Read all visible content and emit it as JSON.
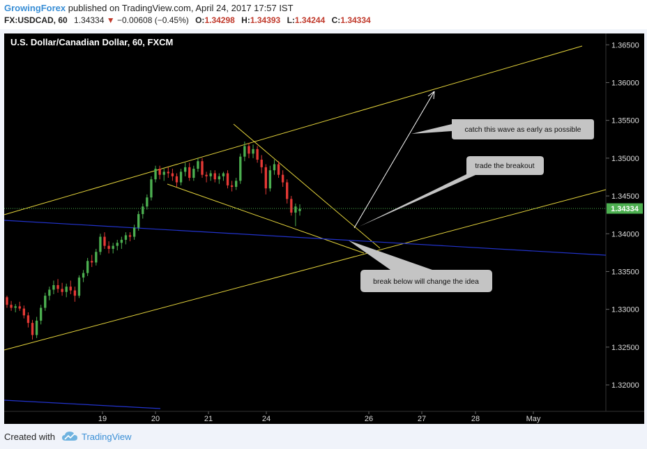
{
  "header": {
    "author": "GrowingForex",
    "published": " published on TradingView.com, April 24, 2017 17:57 IST",
    "symbol": "FX:USDCAD, 60",
    "last": "1.34334",
    "change": "−0.00608 (−0.45%)",
    "o_label": "O:",
    "o": "1.34298",
    "h_label": "H:",
    "h": "1.34393",
    "l_label": "L:",
    "l": "1.34244",
    "c_label": "C:",
    "c": "1.34334"
  },
  "footer": {
    "created": "Created with",
    "brand": "TradingView"
  },
  "colors": {
    "background": "#000000",
    "up": "#4caf50",
    "down": "#e53935",
    "trendline": "#e6d53c",
    "channel_blue": "#2233cc",
    "price_tag": "#4caf50"
  },
  "chart_data": {
    "type": "candlestick",
    "title": "U.S. Dollar/Canadian Dollar, 60, FXCM",
    "ylim": [
      1.3165,
      1.3665
    ],
    "y_ticks": [
      "1.36500",
      "1.36000",
      "1.35500",
      "1.35000",
      "1.34500",
      "1.34000",
      "1.33500",
      "1.33000",
      "1.32500",
      "1.32000"
    ],
    "x_ticks": [
      "19",
      "20",
      "21",
      "24",
      "26",
      "27",
      "28",
      "May"
    ],
    "last_price": "1.34334",
    "candles": [
      [
        1.3316,
        1.3318,
        1.3302,
        1.3306
      ],
      [
        1.3306,
        1.3311,
        1.3298,
        1.3302
      ],
      [
        1.3302,
        1.3307,
        1.3296,
        1.3304
      ],
      [
        1.3304,
        1.331,
        1.3298,
        1.3301
      ],
      [
        1.3301,
        1.3305,
        1.3288,
        1.3292
      ],
      [
        1.3292,
        1.3296,
        1.3276,
        1.3282
      ],
      [
        1.3282,
        1.3286,
        1.326,
        1.3266
      ],
      [
        1.3266,
        1.329,
        1.3262,
        1.3285
      ],
      [
        1.3285,
        1.3306,
        1.328,
        1.3302
      ],
      [
        1.3302,
        1.3322,
        1.3298,
        1.3318
      ],
      [
        1.3318,
        1.333,
        1.3312,
        1.3326
      ],
      [
        1.3326,
        1.3338,
        1.332,
        1.3332
      ],
      [
        1.3332,
        1.334,
        1.3322,
        1.3327
      ],
      [
        1.3327,
        1.3335,
        1.3318,
        1.3323
      ],
      [
        1.3323,
        1.3334,
        1.3316,
        1.333
      ],
      [
        1.333,
        1.3338,
        1.332,
        1.3325
      ],
      [
        1.3325,
        1.333,
        1.331,
        1.3318
      ],
      [
        1.3318,
        1.3345,
        1.3315,
        1.3342
      ],
      [
        1.3342,
        1.3352,
        1.3336,
        1.3348
      ],
      [
        1.3348,
        1.3368,
        1.3344,
        1.3364
      ],
      [
        1.3364,
        1.3372,
        1.3356,
        1.3362
      ],
      [
        1.3362,
        1.338,
        1.3358,
        1.3376
      ],
      [
        1.3376,
        1.34,
        1.3372,
        1.3396
      ],
      [
        1.3396,
        1.3402,
        1.338,
        1.3384
      ],
      [
        1.3384,
        1.339,
        1.3374,
        1.338
      ],
      [
        1.338,
        1.3388,
        1.3374,
        1.3384
      ],
      [
        1.3384,
        1.3392,
        1.3378,
        1.3388
      ],
      [
        1.3388,
        1.3396,
        1.338,
        1.3392
      ],
      [
        1.3392,
        1.3402,
        1.3386,
        1.3398
      ],
      [
        1.3398,
        1.3402,
        1.339,
        1.3396
      ],
      [
        1.3396,
        1.3412,
        1.3392,
        1.3408
      ],
      [
        1.3408,
        1.343,
        1.3404,
        1.3426
      ],
      [
        1.3426,
        1.344,
        1.342,
        1.3436
      ],
      [
        1.3436,
        1.3452,
        1.3432,
        1.3448
      ],
      [
        1.3448,
        1.3476,
        1.3444,
        1.3472
      ],
      [
        1.3472,
        1.349,
        1.3468,
        1.3486
      ],
      [
        1.3486,
        1.349,
        1.3472,
        1.3478
      ],
      [
        1.3478,
        1.3486,
        1.347,
        1.3482
      ],
      [
        1.3482,
        1.3488,
        1.3474,
        1.348
      ],
      [
        1.348,
        1.3486,
        1.347,
        1.3476
      ],
      [
        1.3476,
        1.348,
        1.3462,
        1.3468
      ],
      [
        1.3468,
        1.3486,
        1.3464,
        1.3482
      ],
      [
        1.3482,
        1.3494,
        1.3476,
        1.3488
      ],
      [
        1.3488,
        1.3494,
        1.347,
        1.3474
      ],
      [
        1.3474,
        1.349,
        1.347,
        1.3486
      ],
      [
        1.3486,
        1.35,
        1.3482,
        1.3496
      ],
      [
        1.3496,
        1.35,
        1.3474,
        1.3478
      ],
      [
        1.3478,
        1.3482,
        1.3468,
        1.3476
      ],
      [
        1.3476,
        1.3484,
        1.347,
        1.348
      ],
      [
        1.348,
        1.3484,
        1.3468,
        1.3472
      ],
      [
        1.3472,
        1.348,
        1.3466,
        1.3476
      ],
      [
        1.3476,
        1.3482,
        1.347,
        1.348
      ],
      [
        1.348,
        1.3484,
        1.346,
        1.3464
      ],
      [
        1.3464,
        1.347,
        1.3456,
        1.3462
      ],
      [
        1.3462,
        1.3474,
        1.3458,
        1.347
      ],
      [
        1.347,
        1.3506,
        1.3466,
        1.3502
      ],
      [
        1.3502,
        1.3522,
        1.3496,
        1.3516
      ],
      [
        1.3516,
        1.352,
        1.35,
        1.3506
      ],
      [
        1.3506,
        1.3518,
        1.35,
        1.3512
      ],
      [
        1.3512,
        1.3516,
        1.3494,
        1.3498
      ],
      [
        1.3498,
        1.3504,
        1.348,
        1.3488
      ],
      [
        1.3488,
        1.3492,
        1.3452,
        1.346
      ],
      [
        1.346,
        1.349,
        1.3456,
        1.3484
      ],
      [
        1.3484,
        1.3498,
        1.3478,
        1.3492
      ],
      [
        1.3492,
        1.3496,
        1.3474,
        1.3478
      ],
      [
        1.3478,
        1.3484,
        1.3462,
        1.3468
      ],
      [
        1.3468,
        1.3472,
        1.344,
        1.3446
      ],
      [
        1.3446,
        1.345,
        1.3424,
        1.3428
      ],
      [
        1.3428,
        1.344,
        1.341,
        1.3436
      ],
      [
        1.343,
        1.3439,
        1.3424,
        1.3433
      ]
    ],
    "annotations": [
      "catch this wave as early as possible",
      "trade the breakout",
      "break below will change the idea"
    ]
  }
}
